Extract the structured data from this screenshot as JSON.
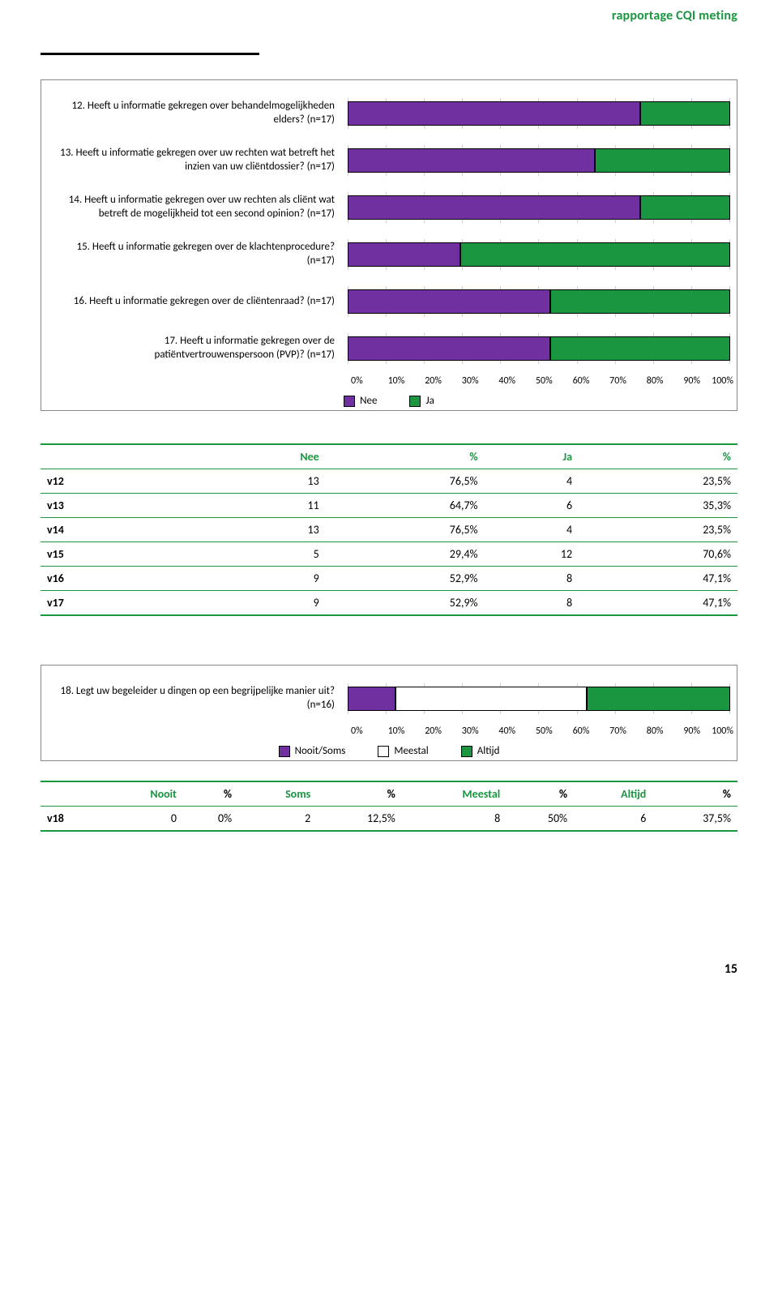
{
  "header": {
    "title": "rapportage CQI meting"
  },
  "colors": {
    "nee": "#7030a0",
    "ja": "#1a9641",
    "meestal_fill": "#ffffff",
    "grid": "#cccccc",
    "rule": "#1a9641"
  },
  "chart1": {
    "type": "stacked-bar-horizontal",
    "x_ticks": [
      "0%",
      "10%",
      "20%",
      "30%",
      "40%",
      "50%",
      "60%",
      "70%",
      "80%",
      "90%",
      "100%"
    ],
    "legend": [
      {
        "label": "Nee",
        "swatch": "#7030a0"
      },
      {
        "label": "Ja",
        "swatch": "#1a9641"
      }
    ],
    "questions": [
      {
        "id": "q12",
        "label": "12. Heeft u informatie gekregen over behandelmogelijkheden elders? (n=17)",
        "segments": [
          {
            "key": "nee",
            "pct": 76.5,
            "color": "#7030a0"
          },
          {
            "key": "ja",
            "pct": 23.5,
            "color": "#1a9641"
          }
        ]
      },
      {
        "id": "q13",
        "label": "13. Heeft u informatie gekregen over uw rechten wat betreft het inzien van uw cliëntdossier? (n=17)",
        "segments": [
          {
            "key": "nee",
            "pct": 64.7,
            "color": "#7030a0"
          },
          {
            "key": "ja",
            "pct": 35.3,
            "color": "#1a9641"
          }
        ]
      },
      {
        "id": "q14",
        "label": "14. Heeft u informatie gekregen over uw rechten als cliënt wat betreft de mogelijkheid tot een second opinion? (n=17)",
        "segments": [
          {
            "key": "nee",
            "pct": 76.5,
            "color": "#7030a0"
          },
          {
            "key": "ja",
            "pct": 23.5,
            "color": "#1a9641"
          }
        ]
      },
      {
        "id": "q15",
        "label": "15. Heeft u informatie gekregen over de klachtenprocedure? (n=17)",
        "segments": [
          {
            "key": "nee",
            "pct": 29.4,
            "color": "#7030a0"
          },
          {
            "key": "ja",
            "pct": 70.6,
            "color": "#1a9641"
          }
        ]
      },
      {
        "id": "q16",
        "label": "16. Heeft u informatie gekregen over de cliëntenraad? (n=17)",
        "segments": [
          {
            "key": "nee",
            "pct": 52.9,
            "color": "#7030a0"
          },
          {
            "key": "ja",
            "pct": 47.1,
            "color": "#1a9641"
          }
        ]
      },
      {
        "id": "q17",
        "label": "17. Heeft u informatie gekregen over de patiëntvertrouwenspersoon (PVP)? (n=17)",
        "segments": [
          {
            "key": "nee",
            "pct": 52.9,
            "color": "#7030a0"
          },
          {
            "key": "ja",
            "pct": 47.1,
            "color": "#1a9641"
          }
        ]
      }
    ]
  },
  "table1": {
    "headers": {
      "nee": "Nee",
      "nee_pct": "%",
      "ja": "Ja",
      "ja_pct": "%"
    },
    "rows": [
      {
        "label": "v12",
        "nee_n": "13",
        "nee_pct": "76,5%",
        "ja_n": "4",
        "ja_pct": "23,5%"
      },
      {
        "label": "v13",
        "nee_n": "11",
        "nee_pct": "64,7%",
        "ja_n": "6",
        "ja_pct": "35,3%"
      },
      {
        "label": "v14",
        "nee_n": "13",
        "nee_pct": "76,5%",
        "ja_n": "4",
        "ja_pct": "23,5%"
      },
      {
        "label": "v15",
        "nee_n": "5",
        "nee_pct": "29,4%",
        "ja_n": "12",
        "ja_pct": "70,6%"
      },
      {
        "label": "v16",
        "nee_n": "9",
        "nee_pct": "52,9%",
        "ja_n": "8",
        "ja_pct": "47,1%"
      },
      {
        "label": "v17",
        "nee_n": "9",
        "nee_pct": "52,9%",
        "ja_n": "8",
        "ja_pct": "47,1%"
      }
    ]
  },
  "chart2": {
    "type": "stacked-bar-horizontal",
    "x_ticks": [
      "0%",
      "10%",
      "20%",
      "30%",
      "40%",
      "50%",
      "60%",
      "70%",
      "80%",
      "90%",
      "100%"
    ],
    "legend": [
      {
        "label": "Nooit/Soms",
        "swatch": "#7030a0"
      },
      {
        "label": "Meestal",
        "swatch_outline": true
      },
      {
        "label": "Altijd",
        "swatch": "#1a9641"
      }
    ],
    "question": {
      "id": "q18",
      "label": "18. Legt uw begeleider u dingen op een begrijpelijke manier uit? (n=16)",
      "segments": [
        {
          "key": "nooit_soms",
          "pct": 12.5,
          "color": "#7030a0"
        },
        {
          "key": "meestal",
          "pct": 50.0,
          "color": "#ffffff",
          "outline": true
        },
        {
          "key": "altijd",
          "pct": 37.5,
          "color": "#1a9641"
        }
      ]
    }
  },
  "table2": {
    "headers": {
      "nooit": "Nooit",
      "soms": "Soms",
      "meestal": "Meestal",
      "altijd": "Altijd",
      "pct": "%"
    },
    "row": {
      "label": "v18",
      "nooit_n": "0",
      "nooit_pct": "0%",
      "soms_n": "2",
      "soms_pct": "12,5%",
      "meestal_n": "8",
      "meestal_pct": "50%",
      "altijd_n": "6",
      "altijd_pct": "37,5%"
    }
  },
  "page_number": "15"
}
